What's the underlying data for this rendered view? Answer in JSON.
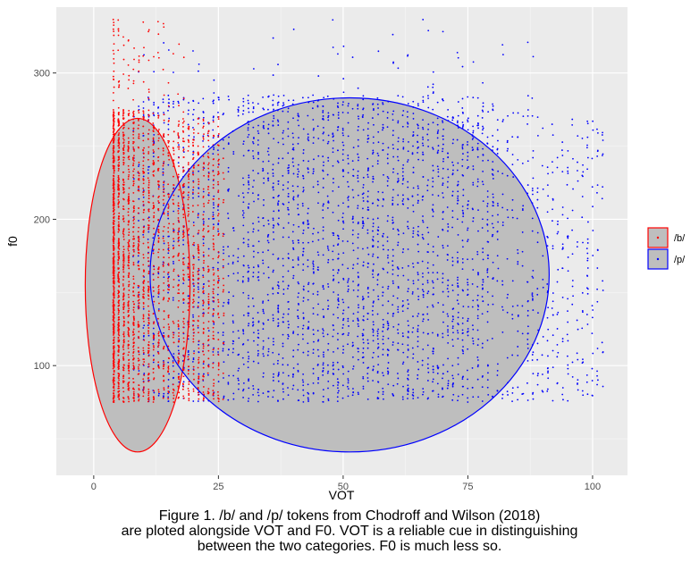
{
  "chart_data": {
    "type": "scatter",
    "xlabel": "VOT",
    "ylabel": "f0",
    "xlim": [
      -7.5,
      107
    ],
    "ylim": [
      25,
      345
    ],
    "x_ticks": [
      0,
      25,
      50,
      75,
      100
    ],
    "y_ticks": [
      100,
      200,
      300
    ],
    "grid": true,
    "legend_position": "right",
    "series": [
      {
        "name": "/b/",
        "color": "#ff0000",
        "x_range": [
          4,
          26
        ],
        "y_range": [
          75,
          337
        ],
        "ellipse": {
          "center_x": 8.8,
          "center_y": 155,
          "radius_x": 10.5,
          "radius_y": 114
        }
      },
      {
        "name": "/p/",
        "color": "#0000ff",
        "x_range": [
          8,
          102
        ],
        "y_range": [
          75,
          337
        ],
        "ellipse": {
          "center_x": 51.3,
          "center_y": 162,
          "radius_x": 40,
          "radius_y": 121
        }
      }
    ],
    "ellipse_fill": "#bebebe"
  },
  "caption": {
    "line1": "Figure 1. /b/ and /p/ tokens from Chodroff and Wilson (2018)",
    "line2": "are ploted alongside VOT and F0. VOT is a reliable cue in distinguishing",
    "line3": "between the two categories. F0 is much less so."
  }
}
